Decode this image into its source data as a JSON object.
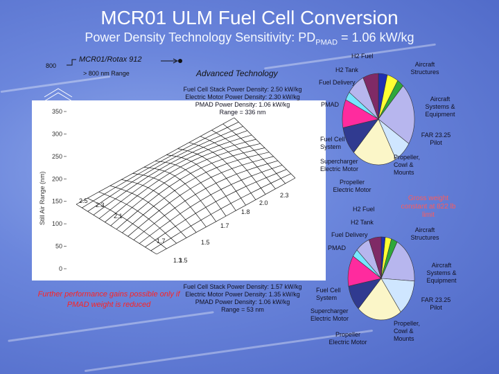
{
  "title": "MCR01 ULM Fuel Cell Conversion",
  "subtitle": {
    "main": "Power Density Technology Sensitivity:  PD",
    "sub": "PMAD",
    "rest": " = 1.06 kW/kg"
  },
  "baseline": {
    "label": "MCR01/Rotax 912",
    "range_label": "> 800 nm Range",
    "tick_value": "800"
  },
  "advanced_label": "Advanced Technology",
  "top_case": {
    "lines": [
      "Fuel Cell Stack Power Density:  2.50 kW/kg",
      "Electric Motor Power Density:  2.30 kW/kg",
      "PMAD Power Density:  1.06 kW/kg",
      "Range = 336 nm"
    ]
  },
  "bottom_case": {
    "lines": [
      "Fuel Cell Stack Power Density:  1.57 kW/kg",
      "Electric Motor Power Density:  1.35 kW/kg",
      "PMAD Power Density:  1.06 kW/kg",
      "Range = 53 nm"
    ]
  },
  "chart_data": {
    "type": "surface",
    "ylabel": "Still Air Range (nm)",
    "y_ticks": [
      "350",
      "300",
      "250",
      "200",
      "150",
      "100",
      "50",
      "0"
    ],
    "ylim": [
      0,
      350
    ],
    "axis_a_labels": [
      "1.5",
      "1.7",
      "2.1",
      "2.3",
      "2.5"
    ],
    "axis_b_labels": [
      "1.3",
      "1.5",
      "1.7",
      "1.8",
      "2.0",
      "2.3"
    ],
    "grid": true
  },
  "top_pie": {
    "labels": [
      "H2 Fuel",
      "H2 Tank",
      "Fuel Delivery",
      "PMAD",
      "Fuel Cell System",
      "Supercharger Electric Motor",
      "Propeller Electric Motor",
      "Aircraft Structures",
      "Aircraft Systems & Equipment",
      "FAR 23.25 Pilot",
      "Propeller, Cowl & Mounts"
    ]
  },
  "bottom_pie": {
    "labels": [
      "H2 Fuel",
      "H2 Tank",
      "Fuel Delivery",
      "PMAD",
      "Fuel Cell System",
      "Supercharger Electric Motor",
      "Propeller Electric Motor",
      "Aircraft Structures",
      "Aircraft Systems & Equipment",
      "FAR 23.25 Pilot",
      "Propeller, Cowl & Mounts"
    ]
  },
  "gross_weight_note": "Gross weight constant at 822 lb limit",
  "bottom_note": "Further performance gains possible only if PMAD weight is reduced",
  "colors": {
    "pie_blue": "#1f2fb0",
    "pie_yellow": "#ffff33",
    "pie_green": "#2fa83a",
    "pie_cyan": "#77e6ff",
    "pie_magenta": "#ff2b9e",
    "pie_lavender": "#b7b6ee",
    "pie_purple": "#7f2a66",
    "pie_lightblue": "#cfe6ff",
    "pie_cream": "#fbf6c8",
    "pie_navy": "#303a90"
  }
}
